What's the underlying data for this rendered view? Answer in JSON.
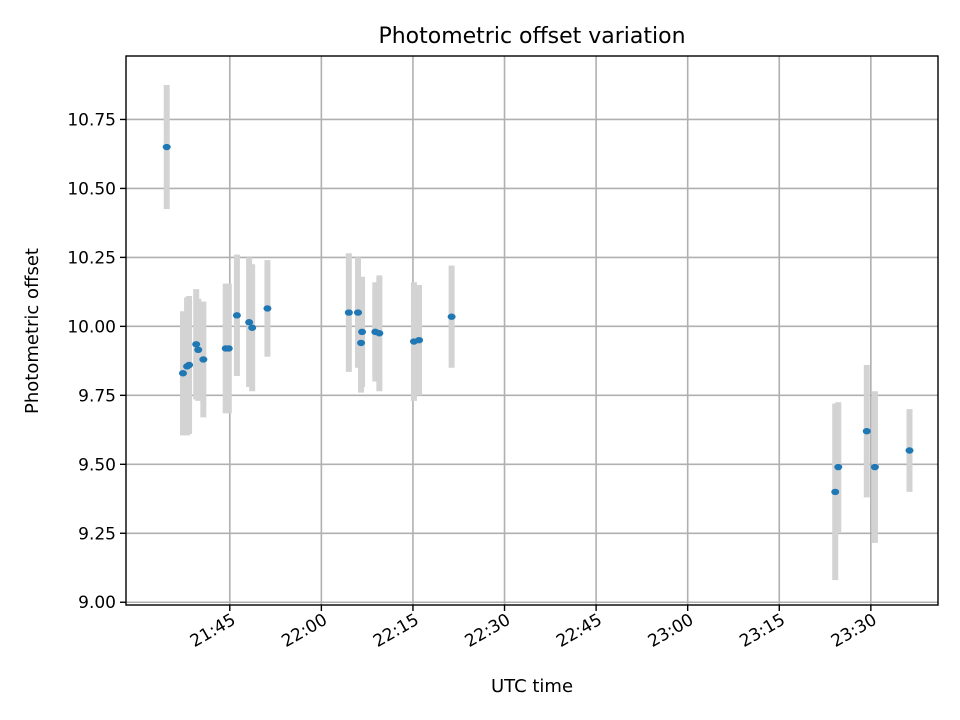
{
  "chart_data": {
    "type": "scatter",
    "title": "Photometric offset variation",
    "xlabel": "UTC time",
    "ylabel": "Photometric offset",
    "grid": true,
    "legend": "none",
    "xlim": [
      "21:28",
      "23:41"
    ],
    "ylim": [
      8.99,
      10.98
    ],
    "x_ticks": [
      "21:45",
      "22:00",
      "22:15",
      "22:30",
      "22:45",
      "23:00",
      "23:15",
      "23:30"
    ],
    "y_ticks": [
      "9.00",
      "9.25",
      "9.50",
      "9.75",
      "10.00",
      "10.25",
      "10.50",
      "10.75"
    ],
    "series": [
      {
        "points": [
          {
            "x": "21:34:40",
            "y": 10.65,
            "err": 0.225
          },
          {
            "x": "21:37:20",
            "y": 9.83,
            "err": 0.225
          },
          {
            "x": "21:38:00",
            "y": 9.855,
            "err": 0.25
          },
          {
            "x": "21:38:20",
            "y": 9.86,
            "err": 0.25
          },
          {
            "x": "21:39:30",
            "y": 9.935,
            "err": 0.2
          },
          {
            "x": "21:39:50",
            "y": 9.915,
            "err": 0.185
          },
          {
            "x": "21:40:40",
            "y": 9.88,
            "err": 0.21
          },
          {
            "x": "21:44:20",
            "y": 9.92,
            "err": 0.235
          },
          {
            "x": "21:44:50",
            "y": 9.92,
            "err": 0.235
          },
          {
            "x": "21:46:10",
            "y": 10.04,
            "err": 0.22
          },
          {
            "x": "21:48:10",
            "y": 10.015,
            "err": 0.235
          },
          {
            "x": "21:48:40",
            "y": 9.995,
            "err": 0.23
          },
          {
            "x": "21:51:10",
            "y": 10.065,
            "err": 0.175
          },
          {
            "x": "22:04:30",
            "y": 10.05,
            "err": 0.215
          },
          {
            "x": "22:06:00",
            "y": 10.05,
            "err": 0.2
          },
          {
            "x": "22:06:30",
            "y": 9.94,
            "err": 0.18
          },
          {
            "x": "22:06:40",
            "y": 9.98,
            "err": 0.2
          },
          {
            "x": "22:08:50",
            "y": 9.98,
            "err": 0.18
          },
          {
            "x": "22:09:30",
            "y": 9.975,
            "err": 0.21
          },
          {
            "x": "22:15:10",
            "y": 9.945,
            "err": 0.215
          },
          {
            "x": "22:16:00",
            "y": 9.95,
            "err": 0.2
          },
          {
            "x": "22:21:20",
            "y": 10.035,
            "err": 0.185
          },
          {
            "x": "23:24:10",
            "y": 9.4,
            "err": 0.32
          },
          {
            "x": "23:24:40",
            "y": 9.49,
            "err": 0.235
          },
          {
            "x": "23:29:20",
            "y": 9.62,
            "err": 0.24
          },
          {
            "x": "23:30:40",
            "y": 9.49,
            "err": 0.275
          },
          {
            "x": "23:36:20",
            "y": 9.55,
            "err": 0.15
          }
        ]
      }
    ],
    "colors": {
      "points": "#1f77b4",
      "error_bars": "#d3d3d3",
      "grid": "#b0b0b0"
    }
  }
}
